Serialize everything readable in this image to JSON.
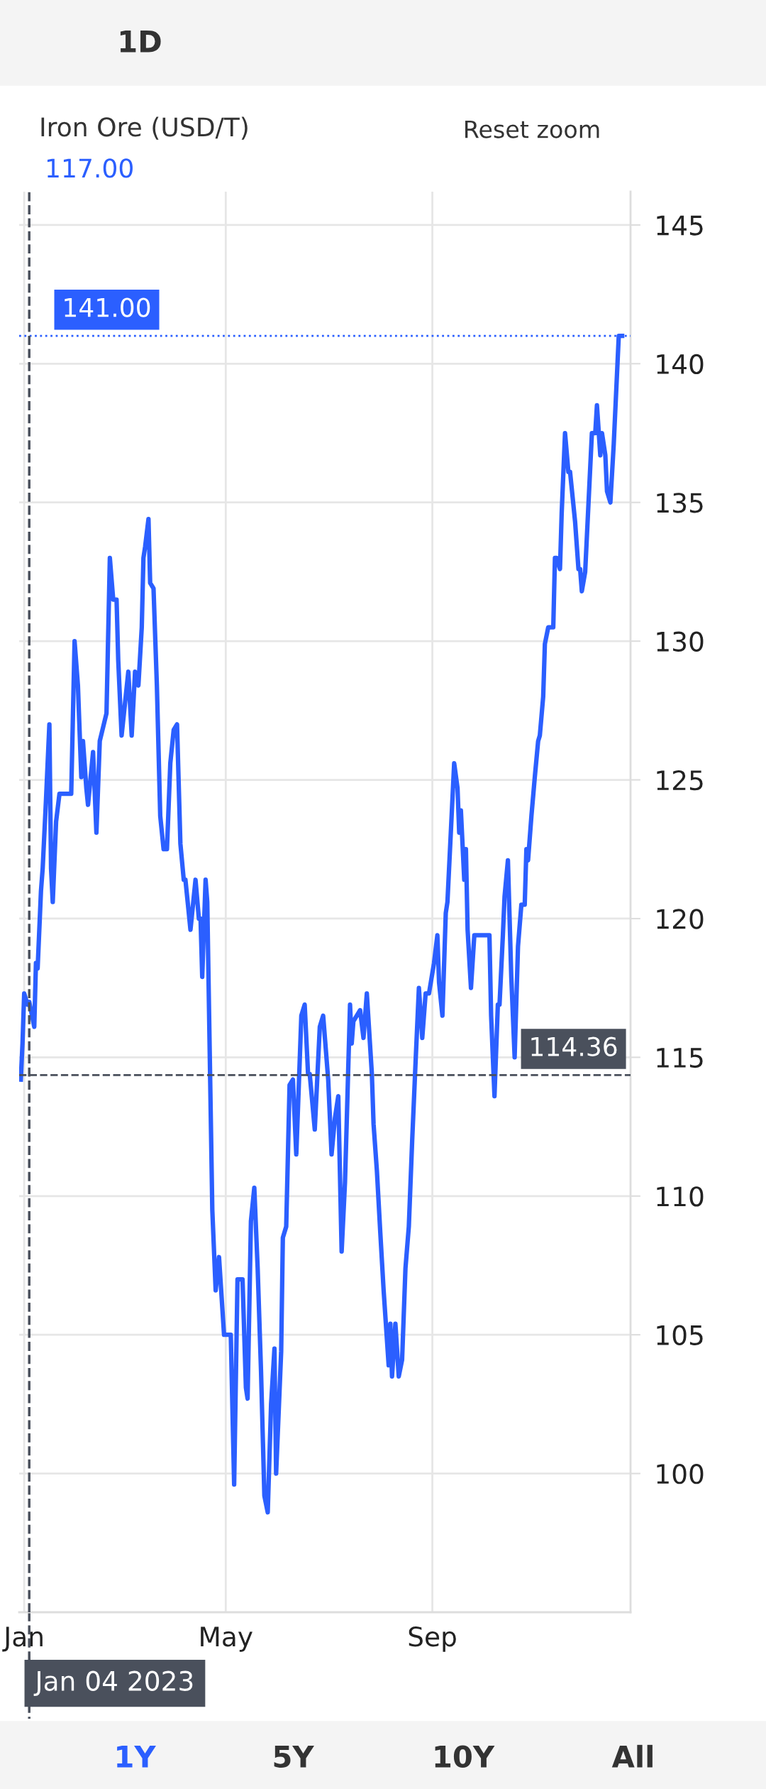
{
  "chart_data": {
    "type": "line",
    "title": "Iron Ore (USD/T)",
    "subtitle": "117.00",
    "annotations": [
      "Reset zoom",
      "1D",
      "1Y",
      "5Y",
      "10Y",
      "All"
    ],
    "x": [
      "2022-12-30",
      "2022-12-31",
      "2023-01-01",
      "2023-01-03",
      "2023-01-04",
      "2023-01-07",
      "2023-01-08",
      "2023-01-09",
      "2023-01-11",
      "2023-01-12",
      "2023-01-14",
      "2023-01-16",
      "2023-01-17",
      "2023-01-18",
      "2023-01-20",
      "2023-01-22",
      "2023-01-29",
      "2023-01-31",
      "2023-02-02",
      "2023-02-04",
      "2023-02-05",
      "2023-02-07",
      "2023-02-08",
      "2023-02-11",
      "2023-02-13",
      "2023-02-15",
      "2023-02-19",
      "2023-02-21",
      "2023-02-23",
      "2023-02-25",
      "2023-02-26",
      "2023-02-28",
      "2023-03-04",
      "2023-03-06",
      "2023-03-08",
      "2023-03-10",
      "2023-03-12",
      "2023-03-13",
      "2023-03-14",
      "2023-03-16",
      "2023-03-17",
      "2023-03-19",
      "2023-03-21",
      "2023-03-23",
      "2023-03-25",
      "2023-03-27",
      "2023-03-29",
      "2023-03-31",
      "2023-04-02",
      "2023-04-04",
      "2023-04-06",
      "2023-04-07",
      "2023-04-10",
      "2023-04-13",
      "2023-04-15",
      "2023-04-16",
      "2023-04-17",
      "2023-04-19",
      "2023-04-20",
      "2023-04-23",
      "2023-04-25",
      "2023-04-27",
      "2023-04-30",
      "2023-05-04",
      "2023-05-06",
      "2023-05-08",
      "2023-05-11",
      "2023-05-13",
      "2023-05-14",
      "2023-05-16",
      "2023-05-18",
      "2023-05-20",
      "2023-05-22",
      "2023-05-24",
      "2023-05-26",
      "2023-05-28",
      "2023-05-30",
      "2023-05-31",
      "2023-06-03",
      "2023-06-04",
      "2023-06-06",
      "2023-06-08",
      "2023-06-10",
      "2023-06-12",
      "2023-06-14",
      "2023-06-15",
      "2023-06-17",
      "2023-06-19",
      "2023-06-20",
      "2023-06-23",
      "2023-06-26",
      "2023-06-28",
      "2023-07-01",
      "2023-07-03",
      "2023-07-05",
      "2023-07-07",
      "2023-07-09",
      "2023-07-11",
      "2023-07-12",
      "2023-07-14",
      "2023-07-15",
      "2023-07-16",
      "2023-07-20",
      "2023-07-22",
      "2023-07-24",
      "2023-07-27",
      "2023-07-28",
      "2023-07-30",
      "2023-08-01",
      "2023-08-03",
      "2023-08-06",
      "2023-08-07",
      "2023-08-08",
      "2023-08-10",
      "2023-08-12",
      "2023-08-14",
      "2023-08-16",
      "2023-08-18",
      "2023-08-20",
      "2023-08-22",
      "2023-08-24",
      "2023-08-26",
      "2023-08-28",
      "2023-08-30",
      "2023-09-02",
      "2023-09-04",
      "2023-09-05",
      "2023-09-07",
      "2023-09-09",
      "2023-09-10",
      "2023-09-12",
      "2023-09-14",
      "2023-09-16",
      "2023-09-17",
      "2023-09-18",
      "2023-09-20",
      "2023-09-21",
      "2023-09-22",
      "2023-09-24",
      "2023-09-26",
      "2023-09-28",
      "2023-10-05",
      "2023-10-06",
      "2023-10-08",
      "2023-10-10",
      "2023-10-11",
      "2023-10-13",
      "2023-10-14",
      "2023-10-16",
      "2023-10-18",
      "2023-10-20",
      "2023-10-22",
      "2023-10-24",
      "2023-10-26",
      "2023-10-27",
      "2023-10-28",
      "2023-10-30",
      "2023-11-01",
      "2023-11-03",
      "2023-11-04",
      "2023-11-06",
      "2023-11-07",
      "2023-11-09",
      "2023-11-12",
      "2023-11-13",
      "2023-11-14",
      "2023-11-16",
      "2023-11-17",
      "2023-11-19",
      "2023-11-21",
      "2023-11-22",
      "2023-11-23",
      "2023-11-25",
      "2023-11-27",
      "2023-11-28",
      "2023-11-29",
      "2023-12-01",
      "2023-12-03",
      "2023-12-05",
      "2023-12-07",
      "2023-12-08",
      "2023-12-10",
      "2023-12-11",
      "2023-12-13",
      "2023-12-14",
      "2023-12-16",
      "2023-12-18",
      "2023-12-21",
      "2023-12-23"
    ],
    "series": [
      {
        "color": "#2b5fff",
        "values": [
          114.2,
          115.5,
          117.3,
          116.9,
          117.0,
          116.1,
          118.4,
          118.2,
          121.0,
          121.8,
          124.3,
          127.0,
          121.8,
          120.6,
          123.5,
          124.5,
          124.5,
          130.0,
          128.4,
          125.1,
          126.4,
          124.7,
          124.1,
          126.0,
          123.1,
          126.4,
          127.4,
          133.0,
          131.5,
          131.5,
          129.3,
          126.6,
          128.9,
          126.6,
          128.9,
          128.4,
          130.5,
          133.0,
          133.4,
          134.4,
          132.1,
          131.9,
          128.4,
          123.7,
          122.5,
          122.5,
          125.6,
          126.8,
          127.0,
          122.7,
          121.4,
          121.4,
          119.6,
          121.4,
          120.0,
          120.0,
          117.9,
          121.4,
          120.6,
          109.5,
          106.6,
          107.8,
          105.0,
          105.0,
          99.6,
          107.0,
          107.0,
          103.1,
          102.7,
          109.1,
          110.3,
          107.4,
          103.7,
          99.2,
          98.6,
          102.5,
          104.5,
          100.0,
          104.4,
          108.5,
          108.9,
          114.0,
          114.2,
          111.5,
          114.8,
          116.5,
          116.9,
          114.4,
          114.4,
          112.4,
          116.1,
          116.5,
          114.2,
          111.5,
          112.8,
          113.6,
          108.0,
          110.5,
          112.6,
          116.9,
          115.5,
          116.3,
          116.7,
          115.7,
          117.3,
          114.4,
          112.6,
          110.9,
          108.7,
          106.6,
          103.9,
          105.4,
          103.5,
          105.4,
          103.5,
          104.1,
          107.4,
          108.9,
          112.0,
          114.8,
          117.5,
          115.7,
          117.3,
          117.3,
          118.4,
          119.4,
          117.7,
          116.5,
          120.2,
          120.6,
          123.1,
          125.6,
          124.7,
          123.1,
          123.9,
          121.4,
          122.5,
          119.6,
          117.5,
          119.4,
          119.4,
          119.4,
          116.5,
          113.6,
          116.9,
          116.9,
          119.4,
          120.8,
          122.1,
          117.9,
          115.0,
          119.0,
          120.5,
          120.5,
          122.5,
          122.1,
          123.7,
          125.1,
          126.4,
          126.6,
          128.0,
          129.9,
          130.5,
          130.5,
          133.0,
          133.0,
          132.6,
          134.6,
          137.5,
          136.1,
          136.1,
          135.5,
          134.3,
          132.6,
          132.6,
          131.8,
          132.5,
          135.0,
          137.5,
          137.5,
          138.5,
          136.7,
          137.5,
          136.7,
          135.4,
          135.0,
          137.1,
          141.0,
          141.0
        ]
      }
    ],
    "xlim": [
      "2022-12-29",
      "2023-12-28"
    ],
    "xticks": [
      {
        "value": "2023-01-01",
        "label": "Jan"
      },
      {
        "value": "2023-05-01",
        "label": "May"
      },
      {
        "value": "2023-09-01",
        "label": "Sep"
      }
    ],
    "ylim": [
      95,
      146.2
    ],
    "yticks": [
      100,
      105,
      110,
      115,
      120,
      125,
      130,
      135,
      140,
      145
    ],
    "ref_lines": [
      {
        "axis": "y",
        "value": 141.0,
        "label": "141.00",
        "color": "#2b5fff",
        "line_style": "dotted"
      },
      {
        "axis": "y",
        "value": 114.36,
        "label": "114.36",
        "color": "#4a505c",
        "line_style": "dashed"
      },
      {
        "axis": "x",
        "value": "2023-01-04",
        "label": "Jan 04 2023",
        "color": "#4a505c",
        "line_style": "dashed"
      }
    ],
    "grid": true,
    "marker": "none",
    "line_style": "solid"
  }
}
